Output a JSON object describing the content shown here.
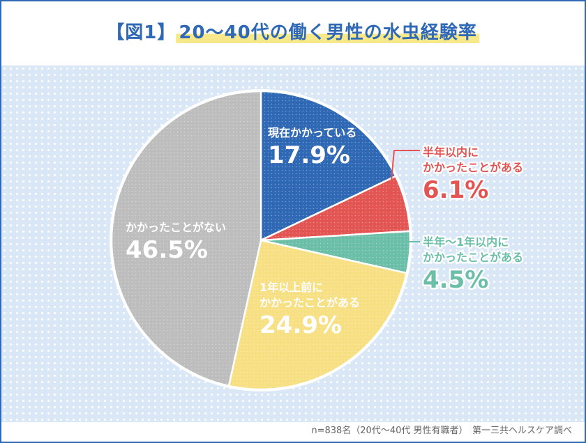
{
  "header": {
    "fig_label": "【図1】",
    "title": "20～40代の働く男性の水虫経験率"
  },
  "footer": {
    "note": "n=838名（20代～40代 男性有職者）　第一三共ヘルスケア調べ"
  },
  "colors": {
    "frame": "#2f68b4",
    "blue": "#2f68b4",
    "red": "#e25553",
    "green": "#6bbfa8",
    "yellow": "#f7df83",
    "gray": "#bdbdbd",
    "background_dots": "#d9e7f6"
  },
  "chart_data": {
    "type": "pie",
    "title": "20～40代の働く男性の水虫経験率",
    "start_angle_deg": 0,
    "direction": "clockwise",
    "slices": [
      {
        "label_lines": [
          "現在かかっている"
        ],
        "value": 17.9,
        "value_label": "17.9%",
        "color": "#2f68b4",
        "label_position": "inside"
      },
      {
        "label_lines": [
          "半年以内に",
          "かかったことがある"
        ],
        "value": 6.1,
        "value_label": "6.1%",
        "color": "#e25553",
        "label_position": "outside-right"
      },
      {
        "label_lines": [
          "半年～1年以内に",
          "かかったことがある"
        ],
        "value": 4.5,
        "value_label": "4.5%",
        "color": "#6bbfa8",
        "label_position": "outside-right"
      },
      {
        "label_lines": [
          "1年以上前に",
          "かかったことがある"
        ],
        "value": 24.9,
        "value_label": "24.9%",
        "color": "#f7df83",
        "label_position": "inside"
      },
      {
        "label_lines": [
          "かかったことがない"
        ],
        "value": 46.5,
        "value_label": "46.5%",
        "color": "#bdbdbd",
        "label_position": "inside"
      }
    ]
  }
}
